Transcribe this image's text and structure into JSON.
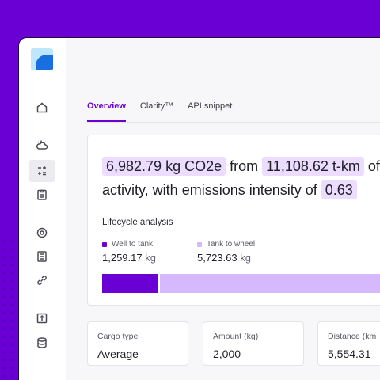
{
  "tabs": [
    {
      "label": "Overview"
    },
    {
      "label": "Clarity™"
    },
    {
      "label": "API snippet"
    }
  ],
  "summary": {
    "emissions": "6,982.79 kg CO2e",
    "from": "from",
    "distance": "11,108.62 t-km",
    "of": "of",
    "line2": "activity, with emissions intensity of",
    "intensity": "0.63"
  },
  "lifecycle": {
    "title": "Lifecycle analysis",
    "items": [
      {
        "label": "Well to tank",
        "value": "1,259.17",
        "unit": "kg",
        "color": "#6a00d4"
      },
      {
        "label": "Tank to wheel",
        "value": "5,723.63",
        "unit": "kg",
        "color": "#d6b8ff"
      }
    ],
    "bar_fractions": [
      0.18,
      0.82
    ]
  },
  "stats": [
    {
      "label": "Cargo type",
      "value": "Average"
    },
    {
      "label": "Amount (kg)",
      "value": "2,000"
    },
    {
      "label": "Distance (km",
      "value": "5,554.31"
    }
  ],
  "nav_icons": [
    "home-icon",
    "weather-icon",
    "calculator-icon",
    "clipboard-icon",
    "settings-badge-icon",
    "document-icon",
    "link-icon",
    "upload-icon",
    "database-icon"
  ],
  "colors": {
    "accent": "#6a00d4",
    "accent_light": "#d6b8ff",
    "pill": "#ecdcff"
  }
}
